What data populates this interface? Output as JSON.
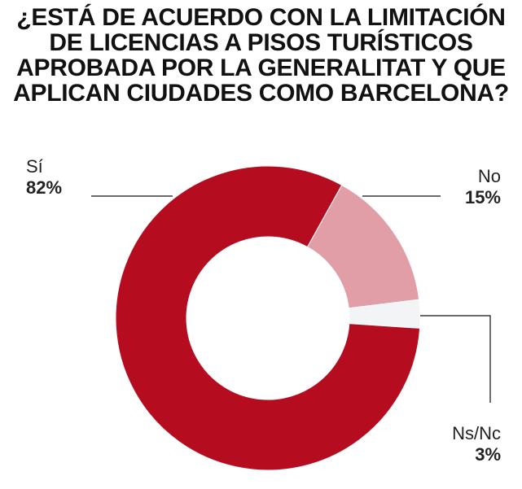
{
  "chart_data": {
    "type": "pie",
    "donut": true,
    "title": "¿ESTÁ DE ACUERDO CON LA LIMITACIÓN DE LICENCIAS A PISOS TURÍSTICOS APROBADA POR LA GENERALITAT Y QUE APLICAN CIUDADES COMO BARCELONA?",
    "slices": [
      {
        "label": "No",
        "value": 15,
        "value_label": "15%",
        "color": "#e19ea6"
      },
      {
        "label": "Ns/Nc",
        "value": 3,
        "value_label": "3%",
        "color": "#f3f4f6"
      },
      {
        "label": "Sí",
        "value": 82,
        "value_label": "82%",
        "color": "#b50d1f"
      }
    ]
  }
}
